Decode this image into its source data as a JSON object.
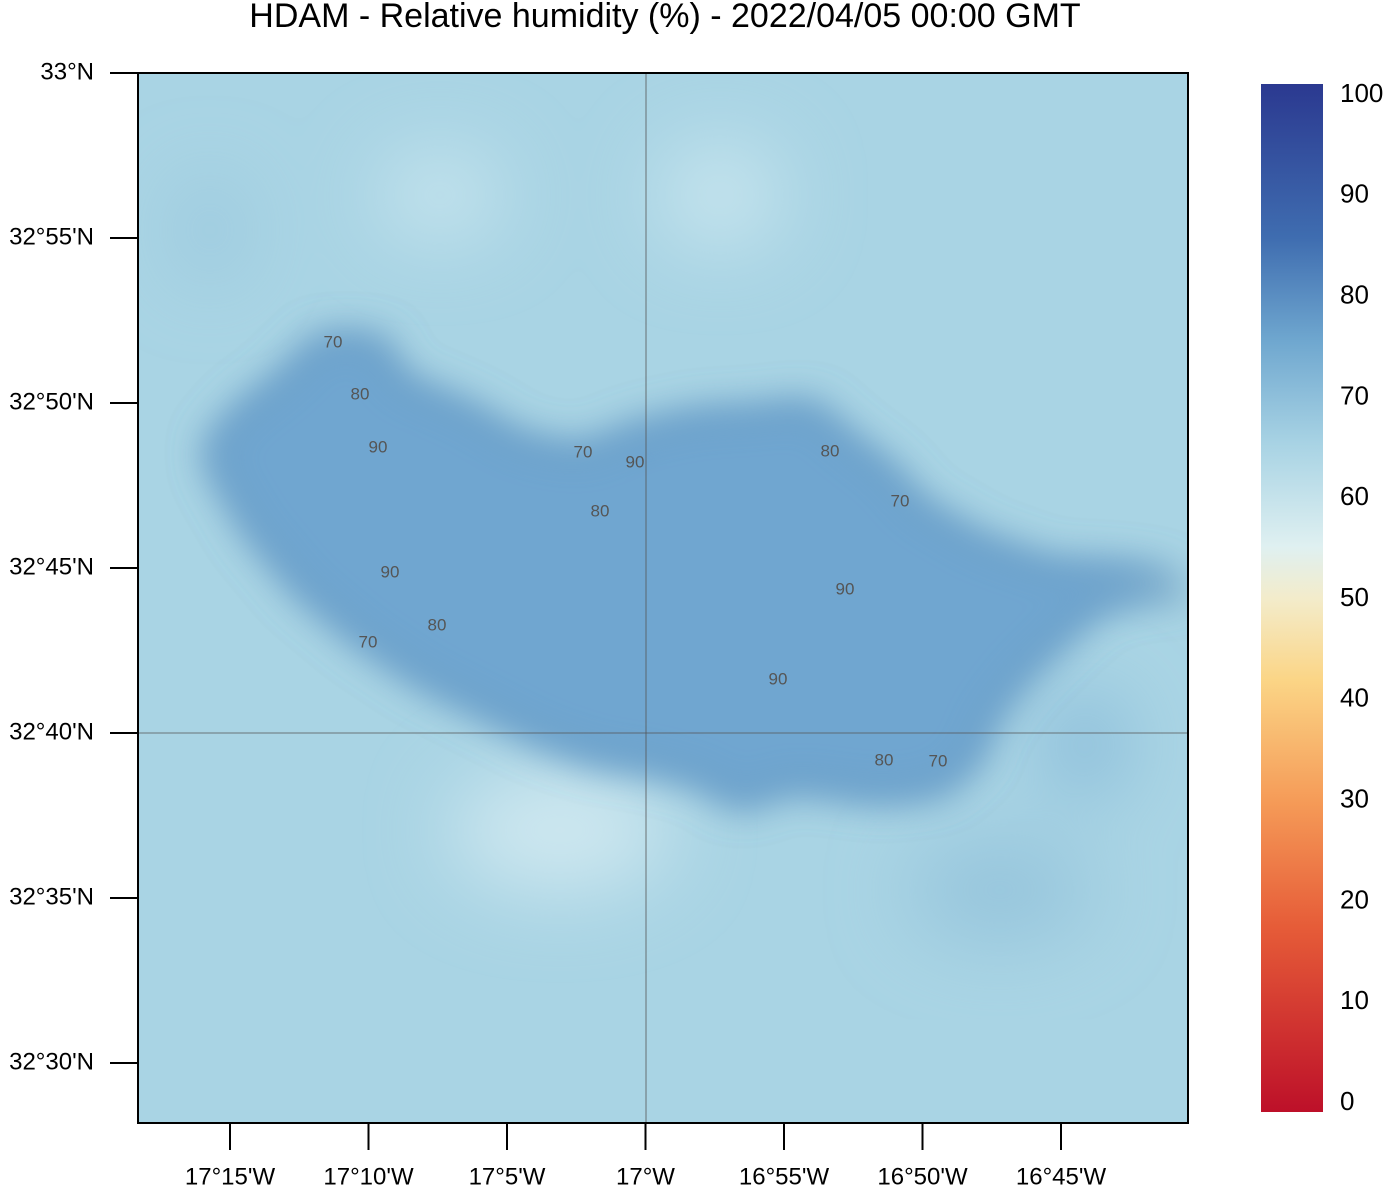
{
  "title": "HDAM - Relative humidity (%)  -  2022/04/05  00:00 GMT",
  "lat_labels": [
    "33°N",
    "32°55'N",
    "32°50'N",
    "32°45'N",
    "32°40'N",
    "32°35'N",
    "32°30'N"
  ],
  "lon_labels": [
    "17°15'W",
    "17°10'W",
    "17°5'W",
    "17°W",
    "16°55'W",
    "16°50'W",
    "16°45'W"
  ],
  "colorbar": {
    "range": [
      0,
      100
    ],
    "ticks": [
      0,
      10,
      20,
      30,
      40,
      50,
      60,
      70,
      80,
      90,
      100
    ]
  },
  "contour_labels": [
    "70",
    "80",
    "90",
    "70",
    "90",
    "80",
    "80",
    "70",
    "90",
    "80",
    "70",
    "90",
    "90",
    "80",
    "70"
  ]
}
